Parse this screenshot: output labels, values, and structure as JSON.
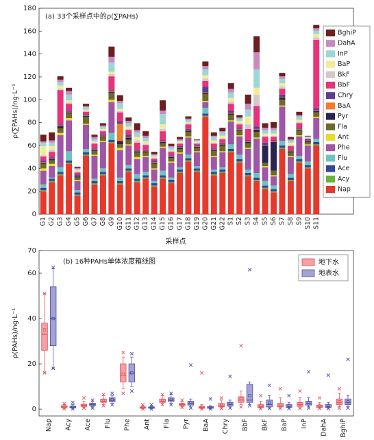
{
  "chart_data": [
    {
      "type": "bar",
      "stacked": true,
      "title": "(a) 33个采样点中的ρ(∑PAHs)",
      "x_label": "采样点",
      "y_label": "ρ(∑PAHs)/ng·L⁻¹",
      "legend": "right",
      "categories": [
        "G1",
        "G2",
        "G3",
        "G4",
        "G5",
        "G6",
        "G7",
        "G8",
        "G9",
        "G10",
        "G11",
        "G12",
        "G13",
        "G14",
        "G15",
        "G16",
        "G17",
        "G18",
        "G19",
        "G20",
        "G21",
        "G22",
        "S1",
        "S2",
        "S3",
        "S4",
        "S5",
        "S6",
        "S7",
        "S8",
        "S9",
        "S10",
        "S11"
      ],
      "ylim": [
        0,
        180
      ],
      "yticks": [
        0,
        20,
        40,
        60,
        80,
        100,
        120,
        140,
        160,
        180
      ],
      "series": [
        {
          "name": "Nap",
          "color": "#e5392b",
          "values": [
            20,
            28,
            34,
            44,
            16,
            51,
            26,
            34,
            62,
            26,
            37,
            28,
            31,
            24,
            31,
            27,
            36,
            46,
            37,
            85,
            34,
            36,
            54,
            45,
            33,
            29,
            22,
            19,
            57,
            29,
            45,
            40,
            60
          ]
        },
        {
          "name": "Acy",
          "color": "#6ab23e",
          "values": [
            1,
            1,
            1,
            1,
            1,
            1,
            1,
            1,
            1,
            1,
            1,
            1,
            1,
            1,
            1,
            1,
            1,
            1,
            1,
            1,
            1,
            1,
            1,
            1,
            1,
            1,
            1,
            1,
            1,
            1,
            1,
            1,
            1
          ]
        },
        {
          "name": "Ace",
          "color": "#33479a",
          "values": [
            2,
            2,
            2,
            2,
            2,
            2,
            2,
            2,
            2,
            2,
            2,
            2,
            2,
            2,
            2,
            2,
            2,
            2,
            2,
            2,
            2,
            2,
            2,
            2,
            2,
            2,
            2,
            2,
            2,
            2,
            2,
            2,
            2
          ]
        },
        {
          "name": "Flu",
          "color": "#6cc4c2",
          "values": [
            3,
            1,
            4,
            8,
            2,
            3,
            2,
            3,
            6,
            3,
            3,
            4,
            3,
            2,
            4,
            2,
            2,
            3,
            2,
            5,
            2,
            2,
            4,
            4,
            3,
            4,
            4,
            3,
            4,
            3,
            3,
            3,
            3
          ]
        },
        {
          "name": "Phe",
          "color": "#a056a6",
          "values": [
            12,
            10,
            28,
            27,
            8,
            21,
            20,
            23,
            27,
            24,
            17,
            13,
            13,
            10,
            20,
            13,
            12,
            15,
            12,
            5,
            11,
            13,
            20,
            16,
            18,
            30,
            12,
            8,
            30,
            15,
            17,
            14,
            18
          ]
        },
        {
          "name": "Ant",
          "color": "#e6dc2a",
          "values": [
            2,
            2,
            2,
            2,
            1,
            1,
            1,
            1,
            2,
            2,
            1,
            2,
            1,
            1,
            1,
            1,
            1,
            1,
            1,
            1,
            1,
            1,
            1,
            1,
            1,
            1,
            1,
            1,
            1,
            1,
            1,
            1,
            1
          ]
        },
        {
          "name": "Fla",
          "color": "#6e6a2a",
          "values": [
            4,
            3,
            4,
            4,
            2,
            6,
            3,
            3,
            6,
            3,
            4,
            4,
            3,
            4,
            3,
            3,
            3,
            4,
            3,
            6,
            4,
            5,
            5,
            4,
            4,
            5,
            3,
            4,
            5,
            3,
            4,
            2,
            4
          ]
        },
        {
          "name": "Pyr",
          "color": "#2a2450",
          "values": [
            1,
            1,
            2,
            1,
            1,
            1,
            1,
            1,
            1,
            3,
            2,
            1,
            1,
            1,
            1,
            1,
            1,
            1,
            1,
            1,
            1,
            1,
            1,
            1,
            1,
            2,
            15,
            25,
            2,
            1,
            1,
            1,
            1
          ]
        },
        {
          "name": "BaA",
          "color": "#ef7d2a",
          "values": [
            0.5,
            0.5,
            0.5,
            0.5,
            0.5,
            0.5,
            0.5,
            0.5,
            0.5,
            15,
            0.5,
            0.5,
            0.5,
            0.5,
            0.5,
            0.5,
            0.5,
            0.5,
            0.5,
            0.5,
            0.5,
            0.5,
            0.5,
            0.5,
            0.5,
            0.5,
            0.5,
            0.5,
            0.5,
            0.5,
            0.5,
            0.5,
            0.5
          ]
        },
        {
          "name": "Chry",
          "color": "#5b3f93",
          "values": [
            1,
            1,
            1,
            1,
            1,
            1,
            1,
            1,
            1,
            2,
            2,
            1,
            1,
            1,
            1,
            1,
            1,
            1,
            1,
            5,
            1,
            1,
            2,
            1,
            1,
            2,
            2,
            1,
            2,
            1,
            1,
            1,
            2
          ]
        },
        {
          "name": "BbF",
          "color": "#e6337a",
          "values": [
            4,
            5,
            30,
            6,
            2,
            2,
            4,
            3,
            12,
            8,
            4,
            6,
            4,
            2,
            8,
            3,
            2,
            4,
            1,
            5,
            4,
            3,
            6,
            3,
            10,
            18,
            5,
            3,
            5,
            3,
            4,
            0.5,
            60
          ]
        },
        {
          "name": "BkF",
          "color": "#d2caca",
          "values": [
            1,
            2,
            1,
            1,
            1,
            1,
            1,
            1,
            2,
            1,
            1,
            2,
            1,
            1,
            2,
            1,
            1,
            1,
            1,
            2,
            1,
            1,
            2,
            1,
            4,
            10,
            1,
            1,
            2,
            1,
            1,
            0.5,
            2
          ]
        },
        {
          "name": "BaP",
          "color": "#f2ec9a",
          "values": [
            8,
            3,
            3,
            2,
            1,
            1,
            1,
            1,
            2,
            2,
            2,
            3,
            2,
            1,
            4,
            1,
            1,
            1,
            1,
            3,
            2,
            2,
            3,
            2,
            7,
            6,
            2,
            2,
            3,
            2,
            2,
            0.5,
            3
          ]
        },
        {
          "name": "InP",
          "color": "#9dd6d6",
          "values": [
            3,
            3,
            3,
            5,
            1,
            2,
            2,
            2,
            8,
            5,
            3,
            4,
            3,
            1,
            9,
            2,
            1,
            2,
            1,
            5,
            3,
            3,
            5,
            2,
            6,
            16,
            3,
            3,
            4,
            2,
            3,
            0.5,
            3
          ]
        },
        {
          "name": "DahA",
          "color": "#c98ac0",
          "values": [
            1,
            2,
            2,
            3,
            1,
            1,
            2,
            1,
            5,
            2,
            2,
            2,
            2,
            1,
            3,
            1,
            1,
            1,
            0.5,
            3,
            1,
            1,
            3,
            1,
            5,
            15,
            2,
            2,
            2,
            1,
            1,
            0.5,
            2
          ]
        },
        {
          "name": "BghiP",
          "color": "#6b1f1f",
          "values": [
            6,
            7,
            3,
            3,
            1,
            2,
            2,
            2,
            9,
            5,
            3,
            6,
            4,
            2,
            9,
            2,
            2,
            2,
            0.5,
            4,
            3,
            3,
            5,
            2,
            8,
            14,
            4,
            5,
            3,
            2,
            3,
            0.5,
            3
          ]
        }
      ]
    },
    {
      "type": "box",
      "title": "(b) 16种PAHs单体浓度箱线图",
      "y_label": "ρ(PAHs)/ng·L⁻¹",
      "legend": "upper right",
      "categories": [
        "Nap",
        "Acy",
        "Ace",
        "Flu",
        "Phe",
        "Ant",
        "Fla",
        "Pyr",
        "BaA",
        "Chry",
        "BbF",
        "BkF",
        "BaP",
        "InP",
        "DahA",
        "BghiP"
      ],
      "ylim": [
        -3,
        70
      ],
      "yticks": [
        0,
        20,
        40,
        60,
        70
      ],
      "series": [
        {
          "name": "地下水",
          "color": "#e0505a",
          "fill": "#f4a0a4",
          "min": [
            16,
            0.2,
            0.5,
            1.5,
            7,
            0.1,
            2,
            0.8,
            0.1,
            0.3,
            1,
            0.2,
            0.3,
            0.3,
            0.3,
            0.5
          ],
          "whisker_low": [
            16,
            0.3,
            0.8,
            2,
            9,
            0.2,
            2.5,
            1,
            0.2,
            0.5,
            2,
            0.4,
            0.5,
            0.6,
            0.5,
            1
          ],
          "q1": [
            26,
            0.6,
            1.2,
            3,
            12,
            0.4,
            3,
            1.5,
            0.4,
            1,
            3,
            0.7,
            1,
            1.2,
            0.8,
            2
          ],
          "median": [
            33,
            1,
            1.7,
            3.5,
            15,
            0.7,
            3.5,
            2,
            0.8,
            1.5,
            4,
            1.2,
            1.5,
            2,
            1.2,
            3
          ],
          "q3": [
            38,
            1.5,
            2.2,
            4.5,
            20,
            1,
            4.5,
            2.5,
            1.2,
            2.5,
            5.5,
            2,
            2.5,
            3,
            1.8,
            4.5
          ],
          "whisker_high": [
            51,
            2,
            3.5,
            6,
            23,
            1.5,
            6,
            3.5,
            2,
            4,
            8,
            3.5,
            5,
            5,
            3,
            7
          ],
          "mean": [
            35,
            1.1,
            1.8,
            3.6,
            15.5,
            0.8,
            3.8,
            2.1,
            1,
            1.8,
            4.6,
            1.5,
            2,
            2.3,
            1.4,
            3.3
          ],
          "max": [
            51,
            2.5,
            5,
            6.5,
            25,
            2,
            6.5,
            4,
            16,
            5,
            28,
            6,
            9,
            8,
            5,
            9
          ]
        },
        {
          "name": "地表水",
          "color": "#4a4aa8",
          "fill": "#a3a3d4",
          "min": [
            18,
            0.2,
            0.5,
            2,
            8,
            0.1,
            2,
            0.5,
            0.1,
            0.5,
            1.5,
            0.3,
            0.3,
            0.5,
            0.3,
            0.5
          ],
          "whisker_low": [
            18,
            0.3,
            1,
            2.5,
            10,
            0.2,
            2.5,
            1,
            0.2,
            1,
            2,
            0.5,
            0.5,
            1,
            0.5,
            1
          ],
          "q1": [
            28,
            0.6,
            1.5,
            3.3,
            12,
            0.4,
            3.5,
            1.8,
            0.4,
            1.5,
            3,
            1,
            0.8,
            1.8,
            0.8,
            2
          ],
          "median": [
            40,
            0.9,
            2,
            4,
            16,
            0.7,
            4,
            2.5,
            0.7,
            2.2,
            4,
            2,
            1.3,
            2.5,
            1.3,
            3
          ],
          "q3": [
            54,
            1.4,
            2.6,
            5,
            20,
            1,
            5,
            3.5,
            1.2,
            3,
            11,
            4,
            2,
            3.5,
            2,
            4.5
          ],
          "whisker_high": [
            62,
            2,
            3.5,
            6,
            23,
            1.5,
            6.5,
            4.5,
            1.5,
            4,
            12,
            6,
            3,
            5,
            3,
            6
          ],
          "mean": [
            40,
            1,
            2,
            4.2,
            16,
            0.8,
            4.3,
            2.8,
            0.8,
            2.5,
            6,
            2.8,
            1.6,
            2.8,
            1.6,
            3.3
          ],
          "max": [
            62.5,
            3,
            4,
            7,
            24.5,
            2,
            7,
            19.5,
            4.5,
            14.5,
            61.5,
            10.5,
            6,
            16.5,
            15,
            22
          ]
        }
      ]
    }
  ]
}
